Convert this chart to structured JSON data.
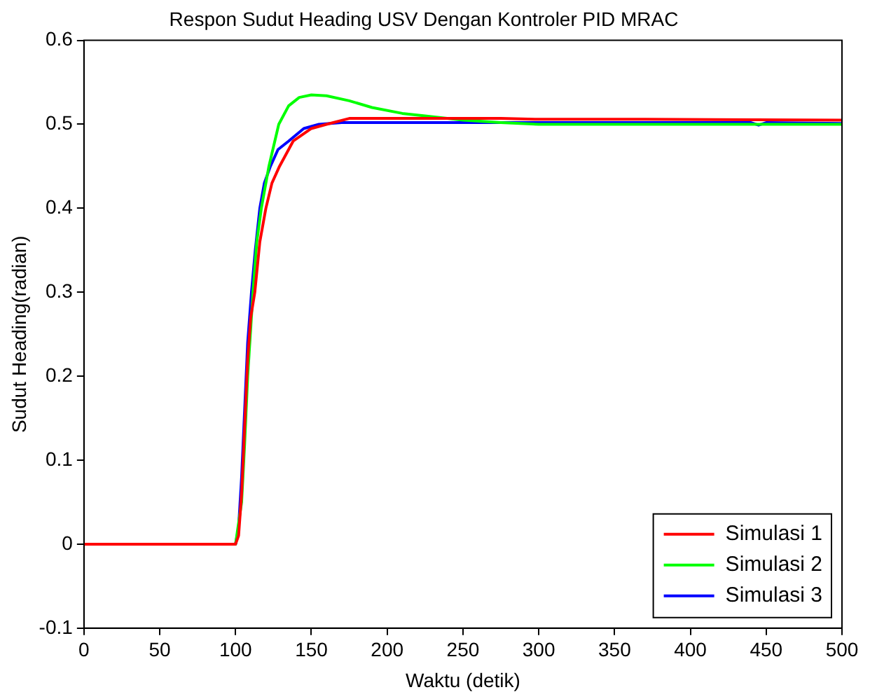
{
  "chart_data": {
    "type": "line",
    "title": "Respon Sudut Heading USV Dengan Kontroler PID MRAC",
    "xlabel": "Waktu (detik)",
    "ylabel": "Sudut Heading(radian)",
    "xlim": [
      0,
      500
    ],
    "ylim": [
      -0.1,
      0.6
    ],
    "xticks": [
      0,
      50,
      100,
      150,
      200,
      250,
      300,
      350,
      400,
      450,
      500
    ],
    "yticks": [
      -0.1,
      0,
      0.1,
      0.2,
      0.3,
      0.4,
      0.5,
      0.6
    ],
    "grid": false,
    "legend": "bottom right",
    "marker": "none",
    "line_style": "solid",
    "series": [
      {
        "name": "Simulasi 1",
        "color": "#ff0000",
        "x": [
          0,
          100,
          102,
          104,
          106,
          108,
          110,
          112.7,
          116,
          120,
          124,
          129,
          138,
          150,
          160,
          175,
          200,
          275,
          300,
          370,
          500
        ],
        "values": [
          0,
          0,
          0.01,
          0.06,
          0.14,
          0.22,
          0.27,
          0.3,
          0.36,
          0.4,
          0.43,
          0.45,
          0.48,
          0.495,
          0.5,
          0.507,
          0.507,
          0.507,
          0.506,
          0.506,
          0.505
        ]
      },
      {
        "name": "Simulasi 2",
        "color": "#00ff00",
        "x": [
          0,
          100,
          104,
          106,
          108,
          111.5,
          114,
          117,
          122,
          128.5,
          135,
          142,
          150,
          160,
          175,
          190,
          210,
          225,
          250,
          275,
          300,
          450,
          500
        ],
        "values": [
          0,
          0,
          0.05,
          0.12,
          0.2,
          0.3,
          0.36,
          0.4,
          0.45,
          0.5,
          0.522,
          0.532,
          0.535,
          0.534,
          0.528,
          0.52,
          0.513,
          0.51,
          0.505,
          0.502,
          0.5,
          0.5,
          0.5
        ]
      },
      {
        "name": "Simulasi 3",
        "color": "#0000ff",
        "x": [
          0,
          100,
          102,
          104,
          106,
          108,
          110.5,
          113,
          116,
          119,
          123,
          128,
          135,
          145,
          155,
          170,
          250,
          440,
          445,
          450,
          500
        ],
        "values": [
          0,
          0,
          0.02,
          0.08,
          0.16,
          0.24,
          0.3,
          0.35,
          0.4,
          0.43,
          0.45,
          0.47,
          0.48,
          0.495,
          0.5,
          0.502,
          0.502,
          0.502,
          0.499,
          0.502,
          0.501
        ]
      }
    ]
  }
}
